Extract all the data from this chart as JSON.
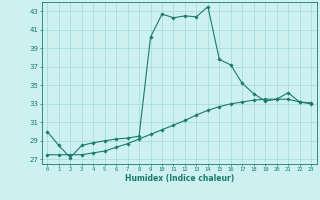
{
  "xlabel": "Humidex (Indice chaleur)",
  "ylabel": "",
  "bg_color": "#cdf0f0",
  "grid_color": "#aadddd",
  "line_color1": "#1a7a6e",
  "line_color2": "#1a7a6e",
  "xlim": [
    -0.5,
    23.5
  ],
  "ylim": [
    26.5,
    44.0
  ],
  "yticks": [
    27,
    29,
    31,
    33,
    35,
    37,
    39,
    41,
    43
  ],
  "xticks": [
    0,
    1,
    2,
    3,
    4,
    5,
    6,
    7,
    8,
    9,
    10,
    11,
    12,
    13,
    14,
    15,
    16,
    17,
    18,
    19,
    20,
    21,
    22,
    23
  ],
  "xtick_labels": [
    "0",
    "1",
    "2",
    "3",
    "4",
    "5",
    "6",
    "7",
    "8",
    "9",
    "10",
    "11",
    "12",
    "13",
    "14",
    "15",
    "16",
    "17",
    "18",
    "19",
    "20",
    "21",
    "22",
    "23"
  ],
  "series1_x": [
    0,
    1,
    2,
    3,
    4,
    5,
    6,
    7,
    8,
    9,
    10,
    11,
    12,
    13,
    14,
    15,
    16,
    17,
    18,
    19,
    20,
    21,
    22,
    23
  ],
  "series1_y": [
    30.0,
    28.5,
    27.2,
    28.5,
    28.8,
    29.0,
    29.2,
    29.3,
    29.5,
    40.2,
    42.7,
    42.3,
    42.5,
    42.4,
    43.5,
    37.8,
    37.2,
    35.2,
    34.1,
    33.3,
    33.5,
    34.2,
    33.2,
    33.1
  ],
  "series2_x": [
    0,
    1,
    2,
    3,
    4,
    5,
    6,
    7,
    8,
    9,
    10,
    11,
    12,
    13,
    14,
    15,
    16,
    17,
    18,
    19,
    20,
    21,
    22,
    23
  ],
  "series2_y": [
    27.5,
    27.5,
    27.5,
    27.5,
    27.7,
    27.9,
    28.3,
    28.7,
    29.2,
    29.7,
    30.2,
    30.7,
    31.2,
    31.8,
    32.3,
    32.7,
    33.0,
    33.2,
    33.4,
    33.5,
    33.5,
    33.5,
    33.2,
    33.0
  ],
  "xlabel_fontsize": 5.5,
  "ytick_fontsize": 5.0,
  "xtick_fontsize": 4.0
}
